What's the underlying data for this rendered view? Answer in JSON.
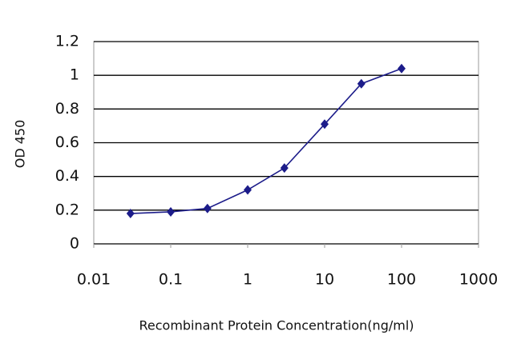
{
  "chart_data": {
    "type": "line",
    "xlabel": "Recombinant Protein Concentration(ng/ml)",
    "ylabel": "OD 450",
    "x": [
      0.03,
      0.1,
      0.3,
      1,
      3,
      10,
      30,
      100
    ],
    "series": [
      {
        "color": "#1c1c8a",
        "values": [
          0.18,
          0.19,
          0.21,
          0.32,
          0.45,
          0.71,
          0.95,
          1.04
        ]
      }
    ],
    "xscale": "log",
    "xlim": [
      0.01,
      1000
    ],
    "xticks": [
      0.01,
      0.1,
      1,
      10,
      100,
      1000
    ],
    "ylim": [
      0,
      1.2
    ],
    "yticks": [
      0,
      0.2,
      0.4,
      0.6,
      0.8,
      1,
      1.2
    ],
    "grid": true
  }
}
